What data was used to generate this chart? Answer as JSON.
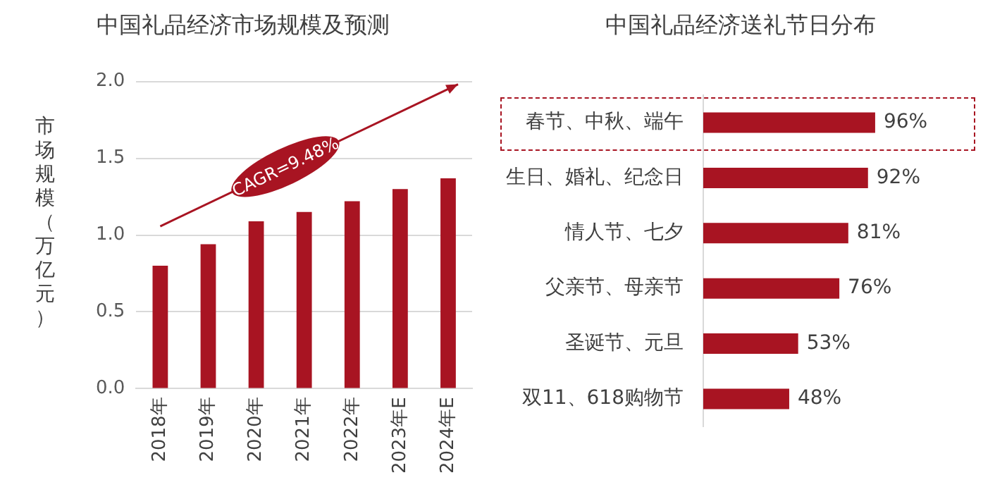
{
  "chart_data": [
    {
      "type": "bar",
      "title": "中国礼品经济市场规模及预测",
      "ylabel": "市场规模（万亿元）",
      "categories": [
        "2018年",
        "2019年",
        "2020年",
        "2021年",
        "2022年",
        "2023年E",
        "2024年E"
      ],
      "values": [
        0.8,
        0.94,
        1.09,
        1.15,
        1.22,
        1.3,
        1.37
      ],
      "color": "#a81422",
      "ylim": [
        0,
        2.0
      ],
      "yticks": [
        {
          "value": 0,
          "label": "0.0"
        },
        {
          "value": 0.5,
          "label": "0.5"
        },
        {
          "value": 1.0,
          "label": "1.0"
        },
        {
          "value": 1.5,
          "label": "1.5"
        },
        {
          "value": 2.0,
          "label": "2.0"
        }
      ],
      "grid": "y",
      "legend": false,
      "annotations": [
        "CAGR=9.48%"
      ]
    },
    {
      "type": "bar",
      "orientation": "horizontal",
      "title": "中国礼品经济送礼节日分布",
      "categories": [
        "春节、中秋、端午",
        "生日、婚礼、纪念日",
        "情人节、七夕",
        "父亲节、母亲节",
        "圣诞节、元旦",
        "双11、618购物节"
      ],
      "values": [
        96,
        92,
        81,
        76,
        53,
        48
      ],
      "value_labels": [
        "96%",
        "92%",
        "81%",
        "76%",
        "53%",
        "48%"
      ],
      "color": "#a81422",
      "grid": false,
      "legend": false,
      "tick_labels": "y"
    }
  ]
}
